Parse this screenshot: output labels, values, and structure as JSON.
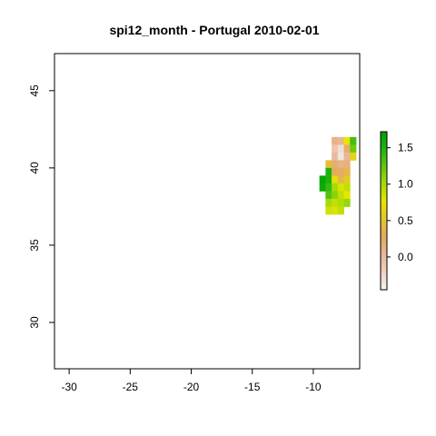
{
  "chart_data": {
    "type": "heatmap",
    "title": "spi12_month - Portugal 2010-02-01",
    "xlabel": "",
    "ylabel": "",
    "xlim": [
      -31.2,
      -6.2
    ],
    "ylim": [
      27,
      47.4
    ],
    "x_ticks": [
      "-30",
      "-25",
      "-20",
      "-15",
      "-10"
    ],
    "x_tick_values": [
      -30,
      -25,
      -20,
      -15,
      -10
    ],
    "y_ticks": [
      "45",
      "40",
      "35",
      "30"
    ],
    "y_tick_values": [
      45,
      40,
      35,
      30
    ],
    "grid": false,
    "cell_size_deg": 0.5,
    "colorbar": {
      "min": -0.45,
      "max": 1.72,
      "ticks": [
        "1.5",
        "1.0",
        "0.5",
        "0.0"
      ],
      "tick_values": [
        1.5,
        1.0,
        0.5,
        0.0
      ],
      "colors": [
        "#F2F2F2",
        "#EFD2C4",
        "#E8B897",
        "#E5A960",
        "#E3C52E",
        "#E6E600",
        "#A6DA0A",
        "#63C80F",
        "#1FB511",
        "#009E00"
      ],
      "placement": "right"
    },
    "cells": [
      {
        "lon": -8.25,
        "lat": 41.75,
        "v": 0.1
      },
      {
        "lon": -7.75,
        "lat": 41.75,
        "v": 0.05
      },
      {
        "lon": -7.25,
        "lat": 41.75,
        "v": 0.75
      },
      {
        "lon": -6.75,
        "lat": 41.75,
        "v": 1.35
      },
      {
        "lon": -8.25,
        "lat": 41.25,
        "v": -0.1
      },
      {
        "lon": -7.75,
        "lat": 41.25,
        "v": -0.3
      },
      {
        "lon": -7.25,
        "lat": 41.25,
        "v": 0.2
      },
      {
        "lon": -6.75,
        "lat": 41.25,
        "v": 1.2
      },
      {
        "lon": -8.25,
        "lat": 40.75,
        "v": 0.0
      },
      {
        "lon": -7.75,
        "lat": 40.75,
        "v": -0.35
      },
      {
        "lon": -7.25,
        "lat": 40.75,
        "v": 0.05
      },
      {
        "lon": -6.75,
        "lat": 40.75,
        "v": 0.6
      },
      {
        "lon": -8.75,
        "lat": 40.25,
        "v": 0.45
      },
      {
        "lon": -8.25,
        "lat": 40.25,
        "v": 0.2
      },
      {
        "lon": -7.75,
        "lat": 40.25,
        "v": 0.1
      },
      {
        "lon": -7.25,
        "lat": 40.25,
        "v": 0.15
      },
      {
        "lon": -8.75,
        "lat": 39.75,
        "v": 1.5
      },
      {
        "lon": -8.25,
        "lat": 39.75,
        "v": 0.3
      },
      {
        "lon": -7.75,
        "lat": 39.75,
        "v": 0.25
      },
      {
        "lon": -7.25,
        "lat": 39.75,
        "v": 0.4
      },
      {
        "lon": -9.25,
        "lat": 39.25,
        "v": 1.65
      },
      {
        "lon": -8.75,
        "lat": 39.25,
        "v": 1.5
      },
      {
        "lon": -8.25,
        "lat": 39.25,
        "v": 0.7
      },
      {
        "lon": -7.75,
        "lat": 39.25,
        "v": 0.4
      },
      {
        "lon": -7.25,
        "lat": 39.25,
        "v": 0.55
      },
      {
        "lon": -9.25,
        "lat": 38.75,
        "v": 1.6
      },
      {
        "lon": -8.75,
        "lat": 38.75,
        "v": 1.4
      },
      {
        "lon": -8.25,
        "lat": 38.75,
        "v": 1.0
      },
      {
        "lon": -7.75,
        "lat": 38.75,
        "v": 0.8
      },
      {
        "lon": -7.25,
        "lat": 38.75,
        "v": 0.9
      },
      {
        "lon": -8.75,
        "lat": 38.25,
        "v": 1.3
      },
      {
        "lon": -8.25,
        "lat": 38.25,
        "v": 1.1
      },
      {
        "lon": -7.75,
        "lat": 38.25,
        "v": 0.9
      },
      {
        "lon": -7.25,
        "lat": 38.25,
        "v": 0.75
      },
      {
        "lon": -8.75,
        "lat": 37.75,
        "v": 1.0
      },
      {
        "lon": -8.25,
        "lat": 37.75,
        "v": 0.9
      },
      {
        "lon": -7.75,
        "lat": 37.75,
        "v": 0.95
      },
      {
        "lon": -7.25,
        "lat": 37.75,
        "v": 1.05
      },
      {
        "lon": -8.75,
        "lat": 37.25,
        "v": 0.85
      },
      {
        "lon": -8.25,
        "lat": 37.25,
        "v": 0.8
      },
      {
        "lon": -7.75,
        "lat": 37.25,
        "v": 0.9
      }
    ]
  }
}
